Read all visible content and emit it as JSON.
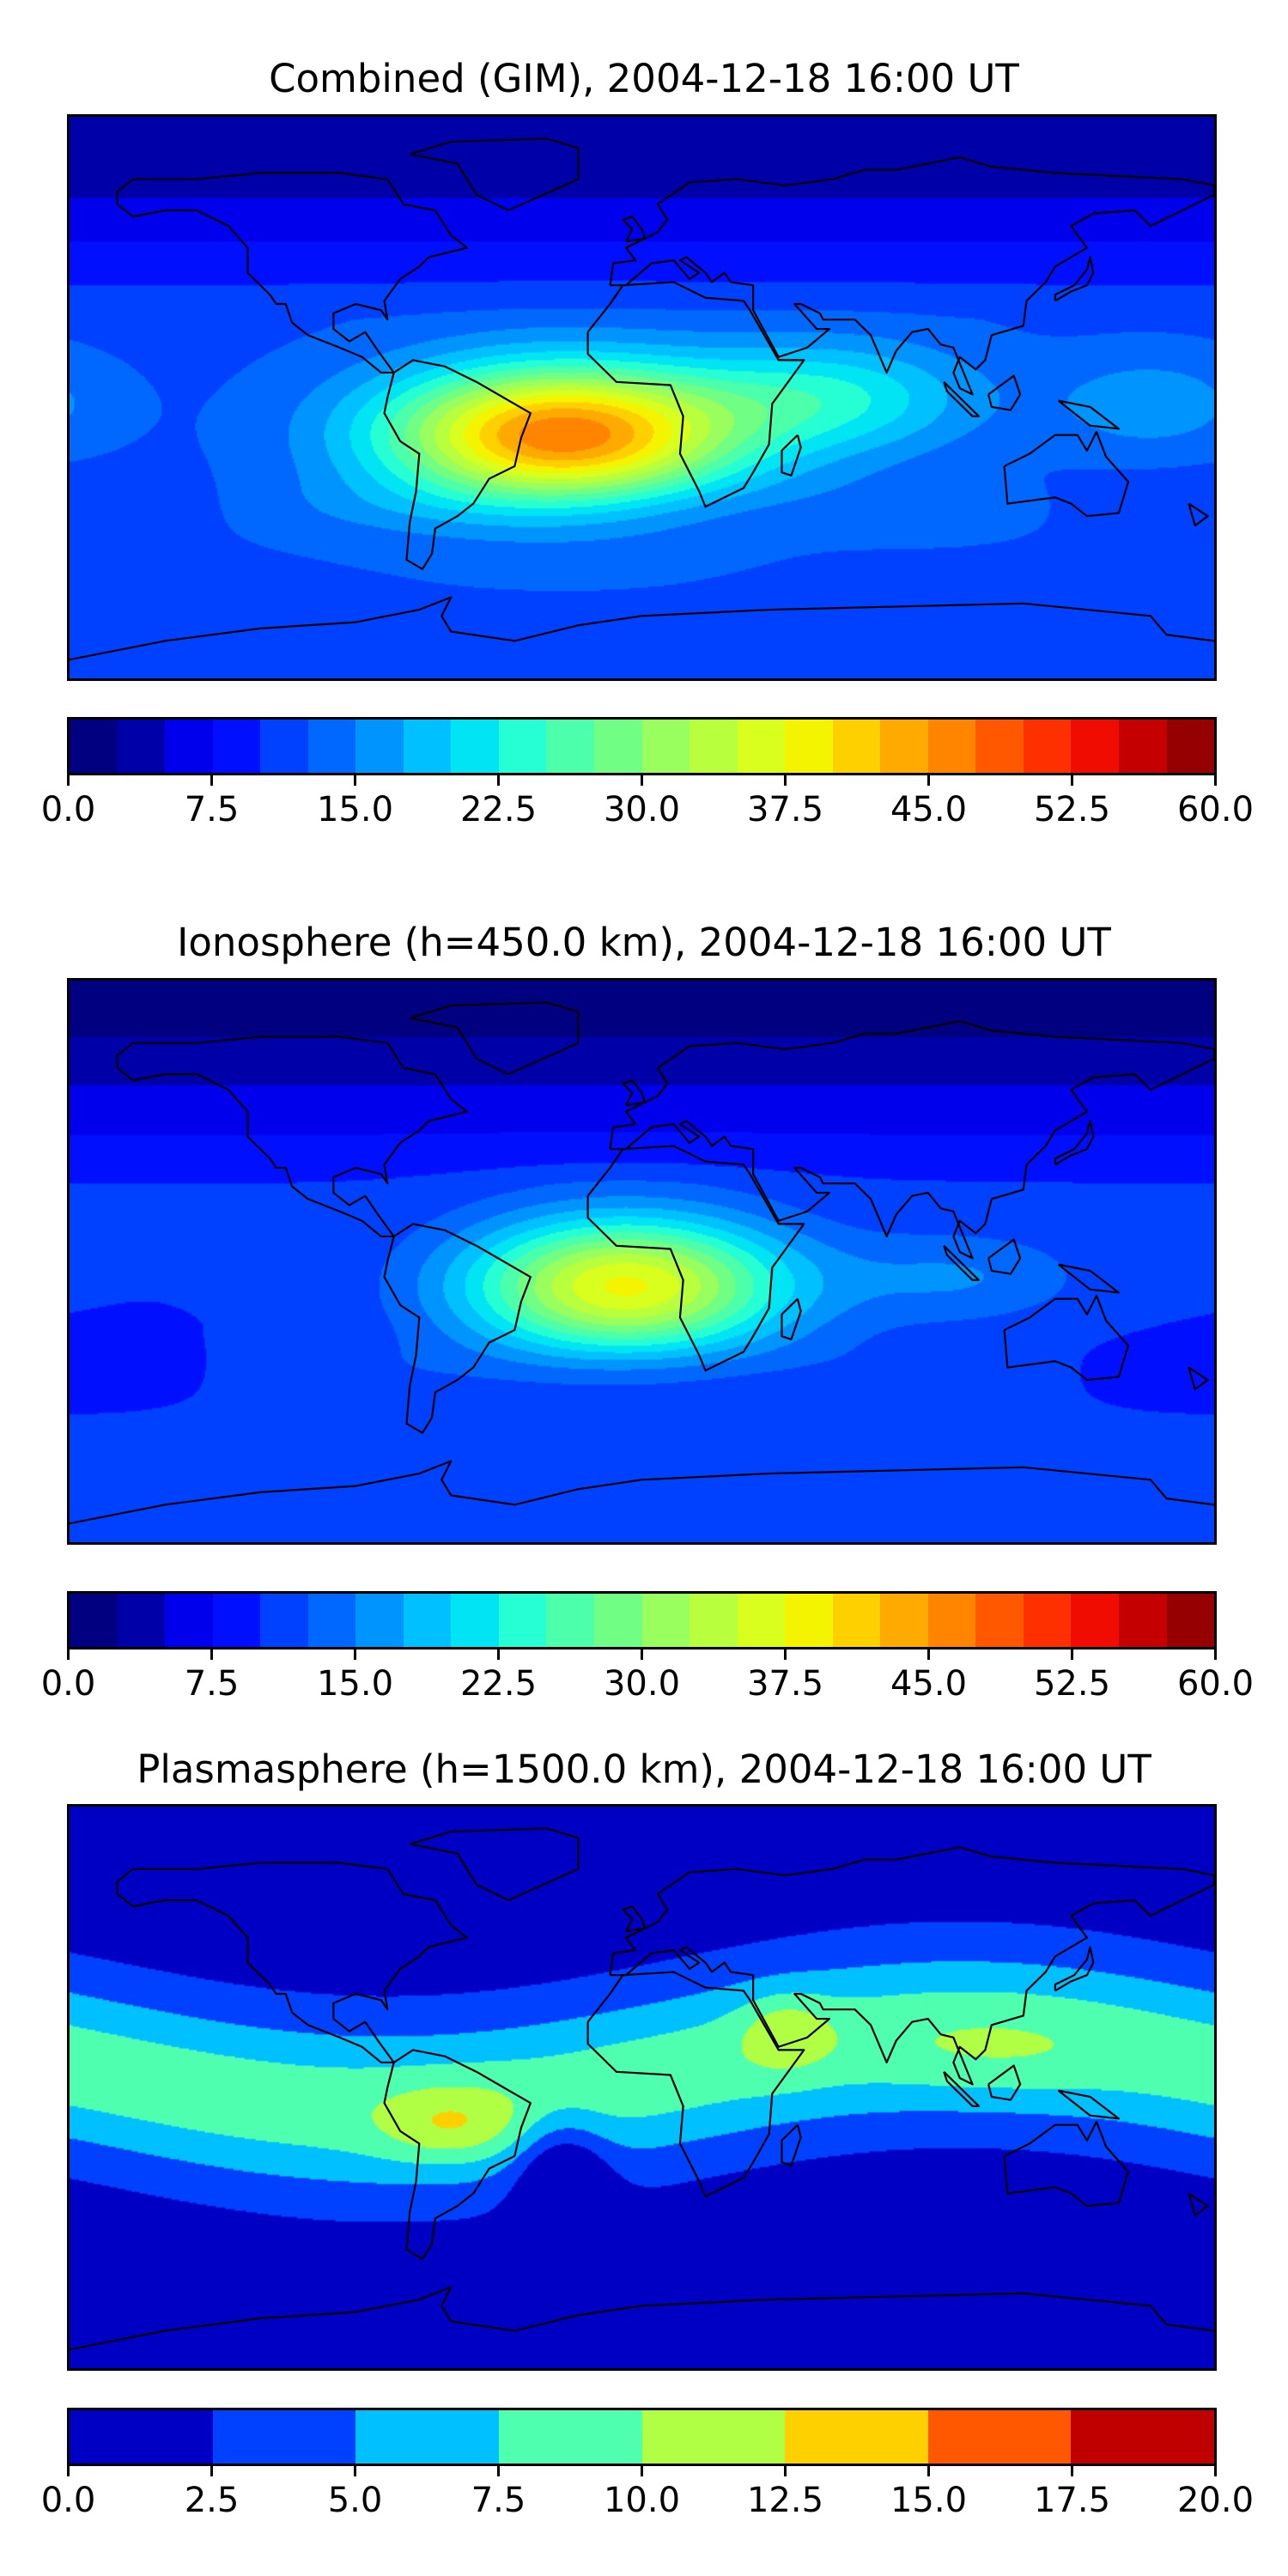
{
  "chart_data": [
    {
      "type": "heatmap",
      "title": "Combined (GIM), 2004-12-18 16:00 UT",
      "xlim": [
        -180,
        180
      ],
      "ylim": [
        -90,
        90
      ],
      "colorbar": {
        "range": [
          0,
          60
        ],
        "step": 2.5,
        "tick_labels": [
          "0.0",
          "7.5",
          "15.0",
          "22.5",
          "30.0",
          "37.5",
          "45.0",
          "52.5",
          "60.0"
        ],
        "colors": [
          "#000080",
          "#0000a8",
          "#0000ec",
          "#0010ff",
          "#0040ff",
          "#0068ff",
          "#0094ff",
          "#00c0ff",
          "#00e4f4",
          "#26ffd4",
          "#4cffaa",
          "#70ff84",
          "#98ff5e",
          "#b8ff3e",
          "#d8ff1e",
          "#f4f400",
          "#ffd000",
          "#ffaa00",
          "#ff8400",
          "#ff5800",
          "#ff3000",
          "#f00c00",
          "#c40000",
          "#960000"
        ]
      },
      "field": {
        "base_equator": 12,
        "base_north": 3,
        "base_south": 13,
        "features": [
          {
            "lon": -25,
            "lat": -12,
            "value": 35,
            "lon_width": 55,
            "lat_width": 22
          },
          {
            "lon": 60,
            "lat": 0,
            "value": 10,
            "lon_width": 45,
            "lat_width": 18
          },
          {
            "lon": 160,
            "lat": -2,
            "value": 5,
            "lon_width": 30,
            "lat_width": 15
          }
        ]
      }
    },
    {
      "type": "heatmap",
      "title": "Ionosphere  (h=450.0 km), 2004-12-18 16:00 UT",
      "xlim": [
        -180,
        180
      ],
      "ylim": [
        -90,
        90
      ],
      "colorbar": {
        "range": [
          0,
          60
        ],
        "step": 2.5,
        "tick_labels": [
          "0.0",
          "7.5",
          "15.0",
          "22.5",
          "30.0",
          "37.5",
          "45.0",
          "52.5",
          "60.0"
        ],
        "colors": [
          "#000080",
          "#0000a8",
          "#0000ec",
          "#0010ff",
          "#0040ff",
          "#0068ff",
          "#0094ff",
          "#00c0ff",
          "#00e4f4",
          "#26ffd4",
          "#4cffaa",
          "#70ff84",
          "#98ff5e",
          "#b8ff3e",
          "#d8ff1e",
          "#f4f400",
          "#ffd000",
          "#ffaa00",
          "#ff8400",
          "#ff5800",
          "#ff3000",
          "#f00c00",
          "#c40000",
          "#960000"
        ]
      },
      "field": {
        "base_equator": 10,
        "base_north": 2,
        "base_south": 11,
        "features": [
          {
            "lon": -5,
            "lat": -8,
            "value": 28,
            "lon_width": 50,
            "lat_width": 22
          },
          {
            "lon": 100,
            "lat": -5,
            "value": 5,
            "lon_width": 40,
            "lat_width": 15
          }
        ]
      }
    },
    {
      "type": "heatmap",
      "title": "Plasmasphere (h=1500.0 km), 2004-12-18 16:00 UT",
      "xlim": [
        -180,
        180
      ],
      "ylim": [
        -90,
        90
      ],
      "colorbar": {
        "range": [
          0,
          20
        ],
        "step": 2.5,
        "tick_labels": [
          "0.0",
          "2.5",
          "5.0",
          "7.5",
          "10.0",
          "12.5",
          "15.0",
          "17.5",
          "20.0"
        ],
        "colors": [
          "#0000c4",
          "#0040ff",
          "#00c0ff",
          "#4effb0",
          "#b0ff44",
          "#ffd000",
          "#ff5800",
          "#c00000"
        ]
      },
      "field": {
        "base_equator": 9,
        "base_north": 1,
        "base_south": 1,
        "band_lat": 5,
        "features": [
          {
            "lon": -60,
            "lat": -12,
            "value": 4,
            "lon_width": 22,
            "lat_width": 12
          },
          {
            "lon": 45,
            "lat": 18,
            "value": 3.5,
            "lon_width": 14,
            "lat_width": 12
          },
          {
            "lon": -25,
            "lat": -28,
            "value": -6,
            "lon_width": 14,
            "lat_width": 18
          },
          {
            "lon": 110,
            "lat": 10,
            "value": 1.5,
            "lon_width": 35,
            "lat_width": 15
          }
        ]
      }
    }
  ]
}
